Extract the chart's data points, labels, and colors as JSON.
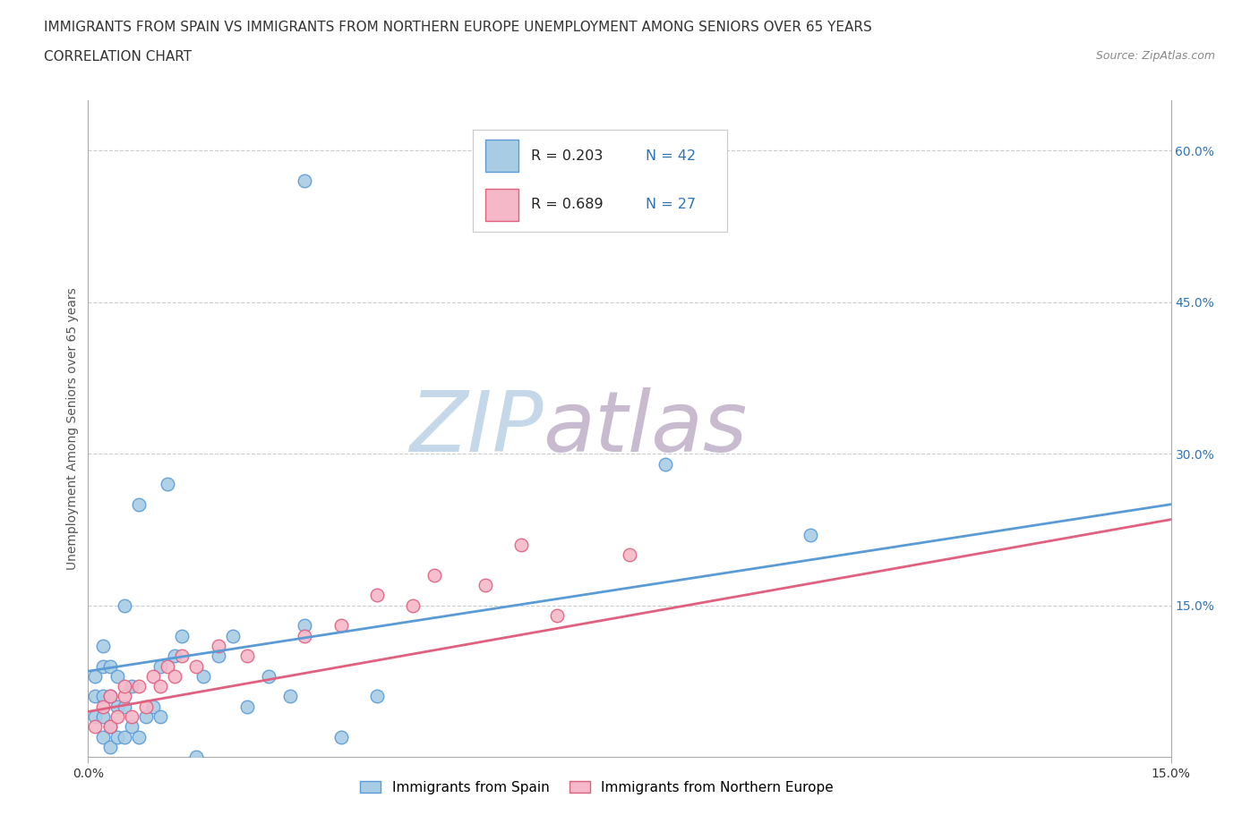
{
  "title_line1": "IMMIGRANTS FROM SPAIN VS IMMIGRANTS FROM NORTHERN EUROPE UNEMPLOYMENT AMONG SENIORS OVER 65 YEARS",
  "title_line2": "CORRELATION CHART",
  "source": "Source: ZipAtlas.com",
  "ylabel": "Unemployment Among Seniors over 65 years",
  "xlim": [
    0.0,
    0.15
  ],
  "ylim": [
    0.0,
    0.65
  ],
  "yticks": [
    0.0,
    0.15,
    0.3,
    0.45,
    0.6
  ],
  "right_ytick_labels": [
    "",
    "15.0%",
    "30.0%",
    "45.0%",
    "60.0%"
  ],
  "xtick_vals": [
    0.0,
    0.15
  ],
  "xtick_labels": [
    "0.0%",
    "15.0%"
  ],
  "series_spain": {
    "name": "Immigrants from Spain",
    "color": "#a8cce4",
    "edge_color": "#5b9bd5",
    "R": 0.203,
    "N": 42,
    "x": [
      0.001,
      0.001,
      0.001,
      0.002,
      0.002,
      0.002,
      0.002,
      0.002,
      0.003,
      0.003,
      0.003,
      0.003,
      0.004,
      0.004,
      0.004,
      0.005,
      0.005,
      0.005,
      0.006,
      0.006,
      0.007,
      0.007,
      0.008,
      0.009,
      0.01,
      0.01,
      0.011,
      0.012,
      0.013,
      0.015,
      0.016,
      0.018,
      0.02,
      0.022,
      0.025,
      0.028,
      0.03,
      0.035,
      0.04,
      0.08,
      0.1,
      0.03
    ],
    "y": [
      0.04,
      0.06,
      0.08,
      0.02,
      0.04,
      0.06,
      0.09,
      0.11,
      0.01,
      0.03,
      0.06,
      0.09,
      0.02,
      0.05,
      0.08,
      0.02,
      0.05,
      0.15,
      0.03,
      0.07,
      0.02,
      0.25,
      0.04,
      0.05,
      0.04,
      0.09,
      0.27,
      0.1,
      0.12,
      0.0,
      0.08,
      0.1,
      0.12,
      0.05,
      0.08,
      0.06,
      0.13,
      0.02,
      0.06,
      0.29,
      0.22,
      0.57
    ]
  },
  "series_north_europe": {
    "name": "Immigrants from Northern Europe",
    "color": "#f4b8c8",
    "edge_color": "#e06080",
    "R": 0.689,
    "N": 27,
    "x": [
      0.001,
      0.002,
      0.003,
      0.003,
      0.004,
      0.005,
      0.005,
      0.006,
      0.007,
      0.008,
      0.009,
      0.01,
      0.011,
      0.012,
      0.013,
      0.015,
      0.018,
      0.022,
      0.03,
      0.035,
      0.04,
      0.045,
      0.048,
      0.055,
      0.06,
      0.065,
      0.075
    ],
    "y": [
      0.03,
      0.05,
      0.03,
      0.06,
      0.04,
      0.06,
      0.07,
      0.04,
      0.07,
      0.05,
      0.08,
      0.07,
      0.09,
      0.08,
      0.1,
      0.09,
      0.11,
      0.1,
      0.12,
      0.13,
      0.16,
      0.15,
      0.18,
      0.17,
      0.21,
      0.14,
      0.2
    ]
  },
  "background_color": "#ffffff",
  "grid_color": "#cccccc",
  "watermark_zip": "ZIP",
  "watermark_atlas": "atlas",
  "watermark_color_zip": "#c5d8ea",
  "watermark_color_atlas": "#c8bbd0",
  "legend_val_color": "#2e75b6",
  "title_fontsize": 11,
  "axis_label_fontsize": 10,
  "tick_fontsize": 10,
  "spain_line": {
    "x0": 0.0,
    "x1": 0.15,
    "y0": 0.085,
    "y1": 0.25
  },
  "ne_line": {
    "x0": 0.0,
    "x1": 0.15,
    "y0": 0.045,
    "y1": 0.235
  }
}
